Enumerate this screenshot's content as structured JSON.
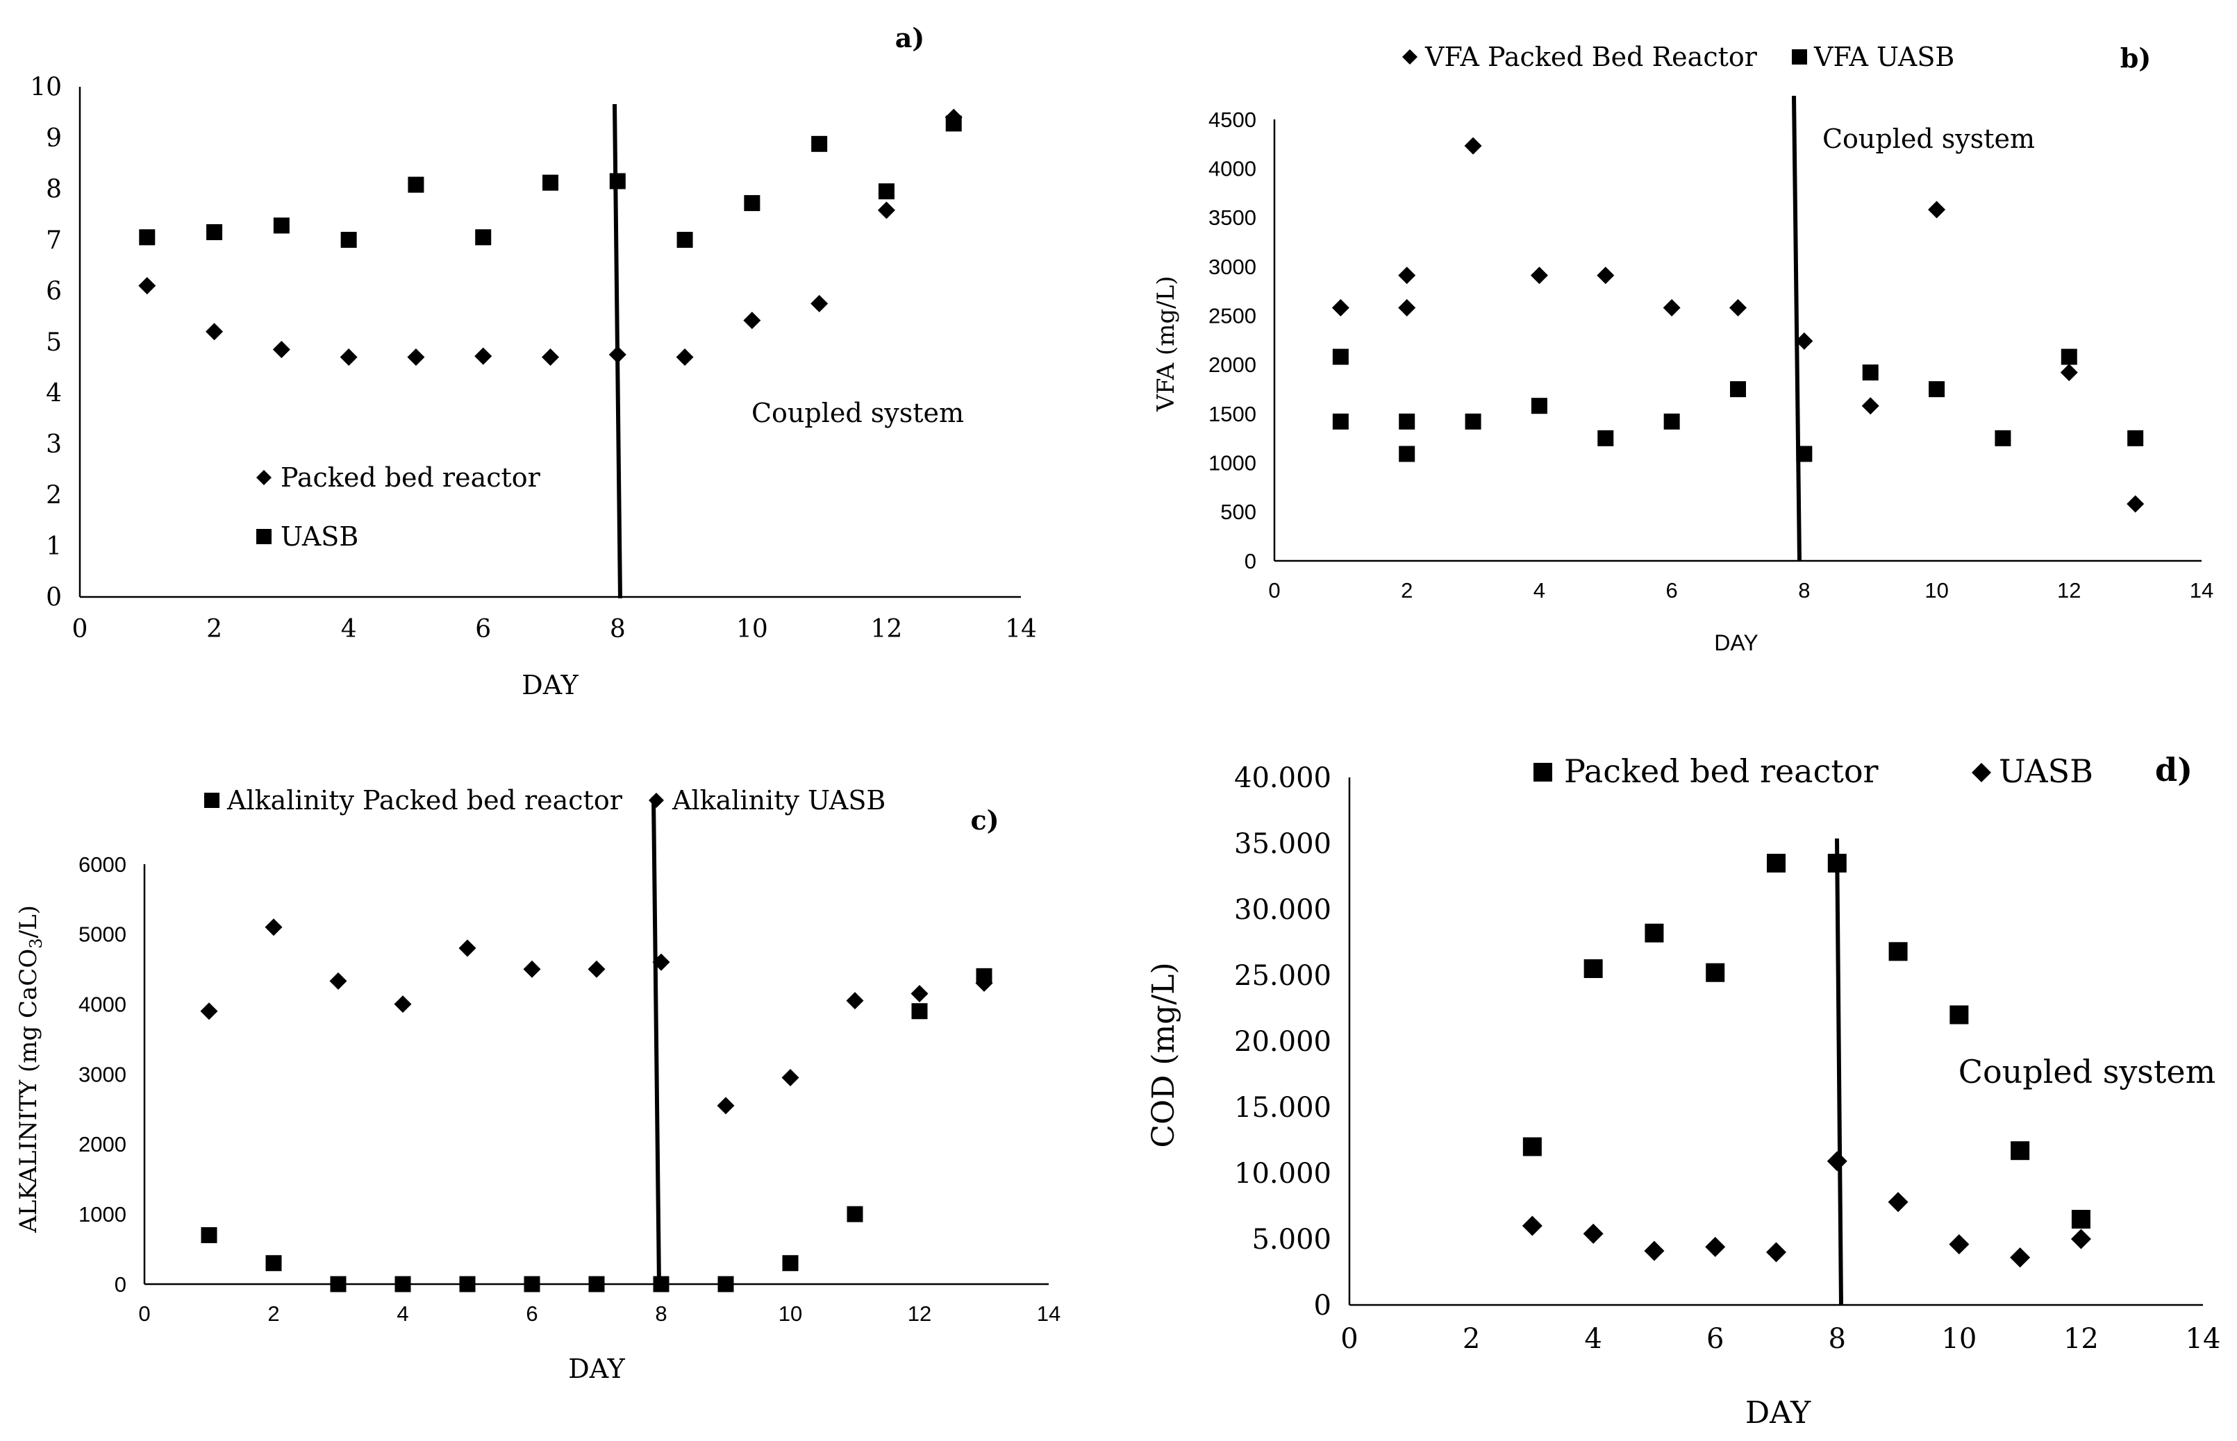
{
  "figure": {
    "panel_count": 4
  },
  "colors": {
    "ink": "#000000",
    "background": "#ffffff"
  },
  "chart_data": [
    {
      "panel": "a)",
      "type": "scatter",
      "title": "",
      "xlabel": "DAY",
      "ylabel": "",
      "xlim": [
        0,
        14
      ],
      "ylim": [
        0,
        10
      ],
      "xticks": [
        0,
        2,
        4,
        6,
        8,
        10,
        12,
        14
      ],
      "yticks": [
        0,
        1,
        2,
        3,
        4,
        5,
        6,
        7,
        8,
        9,
        10
      ],
      "ytick_labels": [
        "0",
        "1",
        "2",
        "3",
        "4",
        "5",
        "6",
        "7",
        "8",
        "9",
        "10"
      ],
      "divider": {
        "x": 8,
        "y_from": 0,
        "y_to": 9.65
      },
      "annotation": "Coupled system",
      "legend_position": "lower-left",
      "series": [
        {
          "name": "Packed bed reactor",
          "marker": "diamond",
          "x": [
            1,
            2,
            3,
            4,
            5,
            6,
            7,
            8,
            9,
            10,
            11,
            12,
            13
          ],
          "y": [
            6.1,
            5.2,
            4.85,
            4.7,
            4.7,
            4.72,
            4.7,
            4.75,
            4.7,
            5.42,
            5.75,
            7.58,
            9.4
          ]
        },
        {
          "name": "UASB",
          "marker": "square",
          "x": [
            1,
            2,
            3,
            4,
            5,
            6,
            7,
            8,
            9,
            10,
            11,
            12,
            13
          ],
          "y": [
            7.05,
            7.15,
            7.28,
            7.0,
            8.08,
            7.05,
            8.12,
            8.15,
            7.0,
            7.72,
            8.88,
            7.95,
            9.28
          ]
        }
      ]
    },
    {
      "panel": "b)",
      "type": "scatter",
      "title": "",
      "xlabel": "DAY",
      "ylabel": "VFA (mg/L)",
      "xlim": [
        0,
        14
      ],
      "ylim": [
        0,
        4500
      ],
      "xticks": [
        0,
        2,
        4,
        6,
        8,
        10,
        12,
        14
      ],
      "yticks": [
        0,
        500,
        1000,
        1500,
        2000,
        2500,
        3000,
        3500,
        4000,
        4500
      ],
      "ytick_labels": [
        "0",
        "500",
        "1000",
        "1500",
        "2000",
        "2500",
        "3000",
        "3500",
        "4000",
        "4500"
      ],
      "divider": {
        "x": 8,
        "y_from": 0,
        "y_to": 4820
      },
      "annotation": "Coupled system",
      "legend_position": "top",
      "series": [
        {
          "name": "VFA Packed Bed Reactor",
          "marker": "diamond",
          "x": [
            1,
            2,
            2,
            3,
            4,
            5,
            6,
            7,
            8,
            9,
            10,
            12,
            13
          ],
          "y": [
            2580,
            2580,
            2910,
            4230,
            2910,
            2910,
            2580,
            2580,
            2240,
            1580,
            3580,
            1920,
            580
          ]
        },
        {
          "name": "VFA UASB",
          "marker": "square",
          "x": [
            1,
            1,
            2,
            2,
            3,
            4,
            5,
            6,
            7,
            8,
            9,
            10,
            11,
            12,
            13
          ],
          "y": [
            2080,
            1420,
            1420,
            1090,
            1420,
            1580,
            1250,
            1420,
            1750,
            1090,
            1920,
            1750,
            1250,
            2080,
            1250
          ]
        }
      ]
    },
    {
      "panel": "c)",
      "type": "scatter",
      "title": "",
      "xlabel": "DAY",
      "ylabel_main": "ALKALINITY (mg CaCO",
      "ylabel_sub": "3",
      "ylabel_end": "/L)",
      "xlim": [
        0,
        14
      ],
      "ylim": [
        0,
        6000
      ],
      "xticks": [
        0,
        2,
        4,
        6,
        8,
        10,
        12,
        14
      ],
      "yticks": [
        0,
        1000,
        2000,
        3000,
        4000,
        5000,
        6000
      ],
      "ytick_labels": [
        "0",
        "1000",
        "2000",
        "3000",
        "4000",
        "5000",
        "6000"
      ],
      "divider": {
        "x": 8,
        "y_from": 0,
        "y_to": 6700
      },
      "annotation": "",
      "legend_position": "top",
      "series": [
        {
          "name": "Alkalinity Packed bed reactor",
          "marker": "square",
          "x": [
            1,
            2,
            3,
            4,
            5,
            6,
            7,
            8,
            9,
            10,
            11,
            12,
            13
          ],
          "y": [
            700,
            300,
            0,
            0,
            0,
            0,
            0,
            0,
            0,
            300,
            1000,
            3900,
            4400
          ]
        },
        {
          "name": "Alkalinity UASB",
          "marker": "diamond",
          "x": [
            1,
            2,
            3,
            4,
            5,
            6,
            7,
            8,
            9,
            10,
            11,
            12,
            13
          ],
          "y": [
            3900,
            5100,
            4330,
            4000,
            4800,
            4500,
            4500,
            4600,
            2550,
            2950,
            4050,
            4150,
            4300
          ]
        }
      ]
    },
    {
      "panel": "d)",
      "type": "scatter",
      "title": "",
      "xlabel": "DAY",
      "ylabel": "COD (mg/L)",
      "xlim": [
        0,
        14
      ],
      "ylim": [
        0,
        40000
      ],
      "xticks": [
        0,
        2,
        4,
        6,
        8,
        10,
        12,
        14
      ],
      "yticks": [
        0,
        5000,
        10000,
        15000,
        20000,
        25000,
        30000,
        35000,
        40000
      ],
      "ytick_labels": [
        "0",
        "5.000",
        "10.000",
        "15.000",
        "20.000",
        "25.000",
        "30.000",
        "35.000",
        "40.000"
      ],
      "divider": {
        "x": 8,
        "y_from": 0,
        "y_to": 35500
      },
      "annotation": "Coupled system",
      "legend_position": "top",
      "series": [
        {
          "name": "Packed bed reactor",
          "marker": "square",
          "x": [
            3,
            4,
            5,
            6,
            7,
            8,
            9,
            10,
            11,
            12
          ],
          "y": [
            12000,
            25500,
            28200,
            25200,
            33500,
            33500,
            26800,
            22000,
            11700,
            6500
          ]
        },
        {
          "name": "UASB",
          "marker": "diamond",
          "x": [
            3,
            4,
            5,
            6,
            7,
            8,
            9,
            10,
            11,
            12
          ],
          "y": [
            6000,
            5400,
            4100,
            4400,
            4000,
            10900,
            7800,
            4600,
            3600,
            5000
          ]
        }
      ]
    }
  ]
}
